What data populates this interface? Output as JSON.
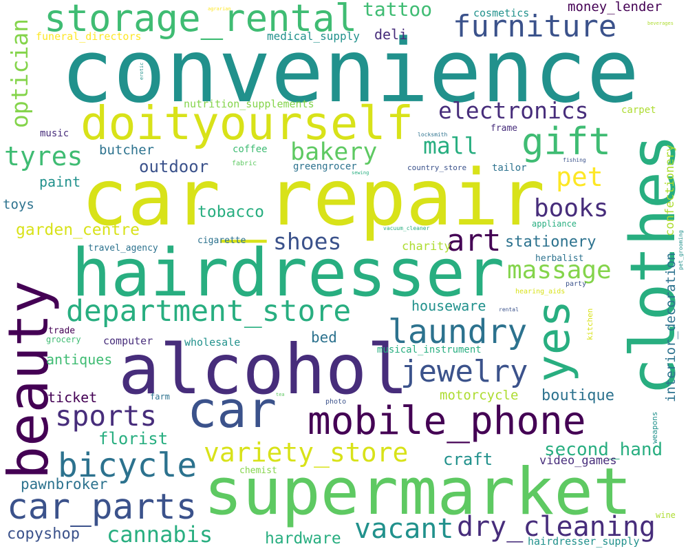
{
  "words": {
    "convenience": "convenience",
    "car_repair": "car_repair",
    "hairdresser": "hairdresser",
    "alcohol": "alcohol",
    "supermarket": "supermarket",
    "clothes": "clothes",
    "beauty": "beauty",
    "doityourself": "doityourself",
    "car": "car",
    "mobile_phone": "mobile_phone",
    "storage_rental": "storage_rental",
    "furniture": "furniture",
    "gift": "gift",
    "yes": "yes",
    "department_store": "department_store",
    "car_parts": "car_parts",
    "bicycle": "bicycle",
    "laundry": "laundry",
    "variety_store": "variety_store",
    "dry_cleaning": "dry_cleaning",
    "sports": "sports",
    "jewelry": "jewelry",
    "massage": "massage",
    "vacant": "vacant",
    "art": "art",
    "electronics": "electronics",
    "bakery": "bakery",
    "mall": "mall",
    "pet": "pet",
    "books": "books",
    "tyres": "tyres",
    "optician": "optician",
    "shoes": "shoes",
    "cannabis": "cannabis",
    "tattoo": "tattoo",
    "second_hand": "second_hand",
    "outdoor": "outdoor",
    "copyshop": "copyshop",
    "hardware": "hardware",
    "florist": "florist",
    "craft": "craft",
    "boutique": "boutique",
    "tobacco": "tobacco",
    "stationery": "stationery",
    "garden_centre": "garden_centre",
    "pawnbroker": "pawnbroker",
    "houseware": "houseware",
    "antiques": "antiques",
    "ticket": "ticket",
    "paint": "paint",
    "butcher": "butcher",
    "deli": "deli",
    "toys": "toys",
    "bed": "bed",
    "motorcycle": "motorcycle",
    "video_games": "video_games",
    "money_lender": "money_lender",
    "cosmetics": "cosmetics",
    "medical_supply": "medical_supply",
    "funeral_directors": "funeral_directors",
    "nutrition_supplements": "nutrition_supplements",
    "charity": "charity",
    "interior_decoration": "interior_decoration",
    "confectionery": "confectionery",
    "hairdresser_supply": "hairdresser_supply",
    "computer": "computer",
    "wholesale": "wholesale",
    "musical_instrument": "musical_instrument",
    "greengrocer": "greengrocer",
    "travel_agency": "travel_agency",
    "cigarette": "cigarette",
    "coffee": "coffee",
    "music": "music",
    "frame": "frame",
    "tailor": "tailor",
    "carpet": "carpet",
    "herbalist": "herbalist",
    "appliance": "appliance",
    "chemist": "chemist",
    "trade": "trade",
    "grocery": "grocery",
    "farm": "farm",
    "photo": "photo",
    "tea": "tea",
    "weapons": "weapons",
    "wine": "wine",
    "kitchen": "kitchen",
    "hearing_aids": "hearing_aids",
    "party": "party",
    "rental": "rental",
    "pet_grooming": "pet_grooming",
    "fabric": "fabric",
    "sewing": "sewing",
    "country_store": "country_store",
    "locksmith": "locksmith",
    "fishing": "fishing",
    "vacuum_cleaner": "vacuum_cleaner",
    "erotic": "erotic",
    "agrarian": "agrarian",
    "beverages": "beverages"
  }
}
